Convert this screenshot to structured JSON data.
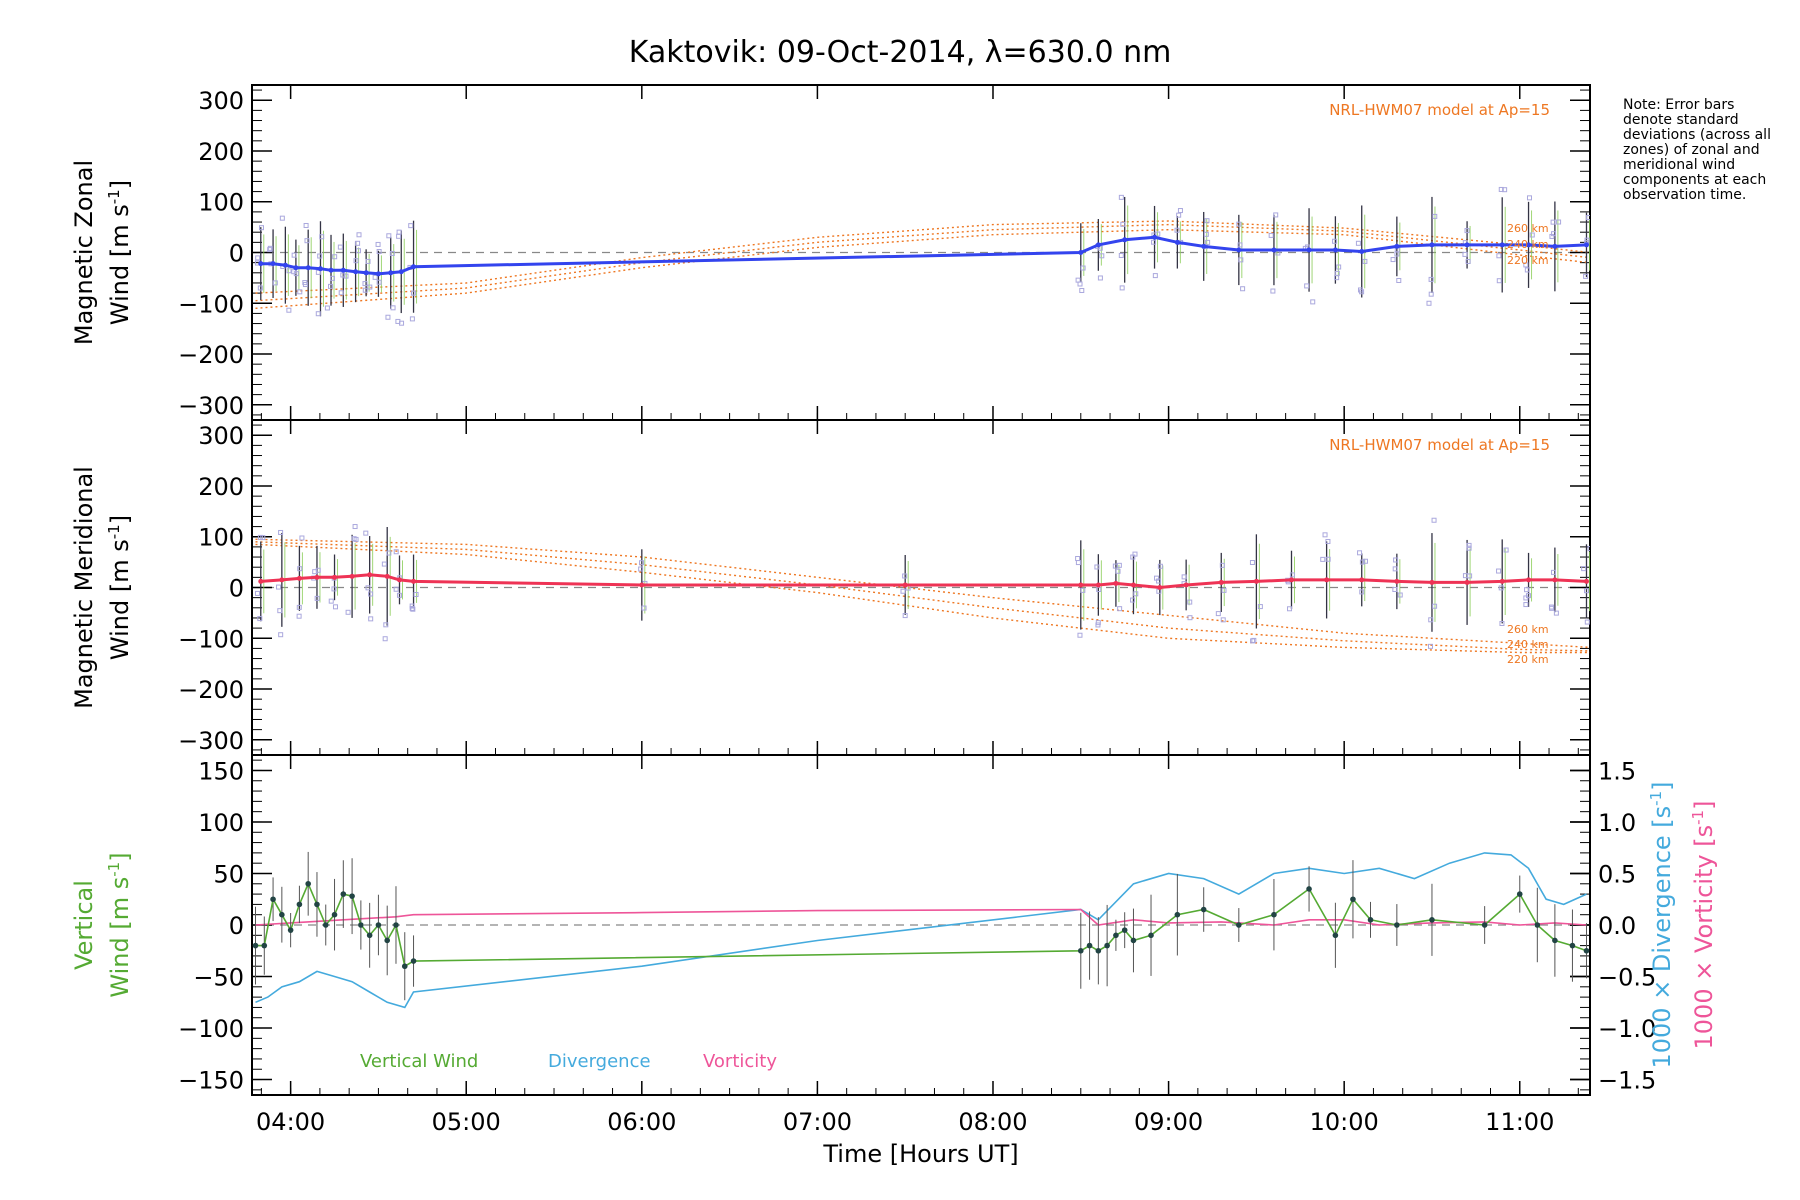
{
  "title": "Kaktovik: 09-Oct-2014, λ=630.0 nm",
  "note": "Note: Error bars denote standard deviations (across all zones) of zonal and meridional wind components at each observation time.",
  "model_label": "NRL-HWM07 model at Ap=15",
  "altitude_labels": [
    "260 km",
    "240 km",
    "220 km"
  ],
  "colors": {
    "zonal": "#3344ee",
    "meridional": "#ee3355",
    "vertical": "#55aa33",
    "divergence": "#44aadd",
    "vorticity": "#ee5599",
    "model": "#ee7722",
    "scatter": "#aaa8dd"
  },
  "chart_data": [
    {
      "type": "line",
      "panel": "zonal",
      "ylabel_line1": "Magnetic Zonal",
      "ylabel_line2": "Wind",
      "yunit": "[m s",
      "yunit_exp": "-1",
      "yunit_end": "]",
      "xlim": [
        3.78,
        11.4
      ],
      "ylim": [
        -330,
        330
      ],
      "yticks": [
        -300,
        -200,
        -100,
        0,
        100,
        200,
        300
      ],
      "series": [
        {
          "x": [
            3.83,
            3.9,
            3.97,
            4.03,
            4.1,
            4.17,
            4.23,
            4.3,
            4.37,
            4.43,
            4.5,
            4.57,
            4.63,
            4.7,
            8.5,
            8.6,
            8.75,
            8.92,
            9.05,
            9.2,
            9.4,
            9.6,
            9.8,
            9.95,
            10.1,
            10.3,
            10.5,
            10.7,
            10.9,
            11.05,
            11.2,
            11.38
          ],
          "y": [
            -22,
            -22,
            -25,
            -30,
            -30,
            -32,
            -35,
            -35,
            -38,
            -40,
            -42,
            -40,
            -38,
            -28,
            0,
            15,
            25,
            30,
            20,
            12,
            5,
            5,
            5,
            5,
            2,
            12,
            15,
            15,
            15,
            15,
            12,
            15
          ]
        }
      ],
      "model": [
        {
          "x": [
            3.8,
            5,
            6,
            7,
            8,
            9,
            10,
            11,
            11.4
          ],
          "y": [
            -80,
            -60,
            -10,
            30,
            55,
            62,
            48,
            15,
            0
          ]
        },
        {
          "x": [
            3.8,
            5,
            6,
            7,
            8,
            9,
            10,
            11,
            11.4
          ],
          "y": [
            -95,
            -70,
            -20,
            20,
            45,
            55,
            42,
            5,
            -10
          ]
        },
        {
          "x": [
            3.8,
            5,
            6,
            7,
            8,
            9,
            10,
            11,
            11.4
          ],
          "y": [
            -110,
            -80,
            -30,
            10,
            35,
            45,
            35,
            -5,
            -20
          ]
        }
      ]
    },
    {
      "type": "line",
      "panel": "meridional",
      "ylabel_line1": "Magnetic Meridional",
      "ylabel_line2": "Wind",
      "yunit": "[m s",
      "yunit_exp": "-1",
      "yunit_end": "]",
      "xlim": [
        3.78,
        11.4
      ],
      "ylim": [
        -330,
        330
      ],
      "yticks": [
        -300,
        -200,
        -100,
        0,
        100,
        200,
        300
      ],
      "series": [
        {
          "x": [
            3.83,
            3.95,
            4.05,
            4.15,
            4.25,
            4.35,
            4.45,
            4.55,
            4.62,
            4.7,
            6,
            7.5,
            8.5,
            8.6,
            8.7,
            8.8,
            8.95,
            9.1,
            9.3,
            9.5,
            9.7,
            9.9,
            10.1,
            10.3,
            10.5,
            10.7,
            10.9,
            11.05,
            11.2,
            11.38
          ],
          "y": [
            12,
            15,
            18,
            20,
            20,
            22,
            25,
            22,
            15,
            12,
            5,
            5,
            5,
            5,
            8,
            5,
            0,
            5,
            10,
            12,
            15,
            15,
            15,
            12,
            10,
            10,
            12,
            15,
            15,
            12
          ]
        }
      ],
      "model": [
        {
          "x": [
            3.8,
            5,
            6,
            7,
            8,
            9,
            10,
            11,
            11.4
          ],
          "y": [
            95,
            85,
            60,
            20,
            -20,
            -55,
            -90,
            -110,
            -118
          ]
        },
        {
          "x": [
            3.8,
            5,
            6,
            7,
            8,
            9,
            10,
            11,
            11.4
          ],
          "y": [
            90,
            75,
            45,
            5,
            -40,
            -80,
            -105,
            -122,
            -125
          ]
        },
        {
          "x": [
            3.8,
            5,
            6,
            7,
            8,
            9,
            10,
            11,
            11.4
          ],
          "y": [
            85,
            65,
            30,
            -10,
            -60,
            -100,
            -118,
            -128,
            -128
          ]
        }
      ]
    },
    {
      "type": "line",
      "panel": "vertical",
      "ylabel_line1": "Vertical",
      "ylabel_line2": "Wind",
      "yunit": "[m s",
      "yunit_exp": "-1",
      "yunit_end": "]",
      "xlim": [
        3.78,
        11.4
      ],
      "ylim": [
        -165,
        165
      ],
      "yticks": [
        -150,
        -100,
        -50,
        0,
        50,
        100,
        150
      ],
      "y2label": "1000 × Divergence [s",
      "y2label_exp": "-1",
      "y2label_end": "]",
      "y3label": "1000 × Vorticity [s",
      "y3label_exp": "-1",
      "y3label_end": "]",
      "y2lim": [
        -1.65,
        1.65
      ],
      "y2ticks": [
        -1.5,
        -1.0,
        -0.5,
        0.0,
        0.5,
        1.0,
        1.5
      ],
      "legend": [
        "Vertical Wind",
        "Divergence",
        "Vorticity"
      ],
      "vertical": {
        "x": [
          3.8,
          3.85,
          3.9,
          3.95,
          4.0,
          4.05,
          4.1,
          4.15,
          4.2,
          4.25,
          4.3,
          4.35,
          4.4,
          4.45,
          4.5,
          4.55,
          4.6,
          4.65,
          4.7,
          8.5,
          8.55,
          8.6,
          8.65,
          8.7,
          8.75,
          8.8,
          8.9,
          9.05,
          9.2,
          9.4,
          9.6,
          9.8,
          9.95,
          10.05,
          10.15,
          10.3,
          10.5,
          10.8,
          11.0,
          11.1,
          11.2,
          11.3,
          11.38
        ],
        "y": [
          -20,
          -20,
          25,
          10,
          -5,
          20,
          40,
          20,
          0,
          10,
          30,
          28,
          0,
          -10,
          0,
          -15,
          0,
          -40,
          -35,
          -25,
          -20,
          -25,
          -20,
          -10,
          -5,
          -15,
          -10,
          10,
          15,
          0,
          10,
          35,
          -10,
          25,
          5,
          0,
          5,
          0,
          30,
          0,
          -15,
          -20,
          -25
        ]
      },
      "divergence": {
        "x": [
          3.8,
          3.87,
          3.95,
          4.05,
          4.15,
          4.25,
          4.35,
          4.45,
          4.55,
          4.65,
          4.7,
          6,
          7,
          8.5,
          8.6,
          8.8,
          9,
          9.2,
          9.4,
          9.6,
          9.8,
          10,
          10.2,
          10.4,
          10.6,
          10.8,
          10.95,
          11.05,
          11.15,
          11.25,
          11.38
        ],
        "y": [
          -0.75,
          -0.7,
          -0.6,
          -0.55,
          -0.45,
          -0.5,
          -0.55,
          -0.65,
          -0.75,
          -0.8,
          -0.65,
          -0.4,
          -0.15,
          0.15,
          0.05,
          0.4,
          0.5,
          0.45,
          0.3,
          0.5,
          0.55,
          0.5,
          0.55,
          0.45,
          0.6,
          0.7,
          0.68,
          0.55,
          0.25,
          0.2,
          0.3
        ]
      },
      "vorticity": {
        "x": [
          3.8,
          4.0,
          4.3,
          4.6,
          4.7,
          6,
          7,
          8.5,
          8.6,
          8.8,
          9,
          9.3,
          9.6,
          9.8,
          10,
          10.2,
          10.5,
          10.8,
          11,
          11.2,
          11.38
        ],
        "y": [
          0.0,
          0.02,
          0.05,
          0.08,
          0.1,
          0.12,
          0.14,
          0.15,
          0.0,
          0.05,
          0.02,
          0.03,
          0.0,
          0.05,
          0.05,
          0.0,
          0.02,
          0.03,
          0.0,
          0.02,
          0.0
        ]
      }
    }
  ],
  "xaxis": {
    "ticks": [
      4,
      5,
      6,
      7,
      8,
      9,
      10,
      11
    ],
    "tick_labels": [
      "04:00",
      "05:00",
      "06:00",
      "07:00",
      "08:00",
      "09:00",
      "10:00",
      "11:00"
    ],
    "xlabel": "Time [Hours UT]"
  }
}
